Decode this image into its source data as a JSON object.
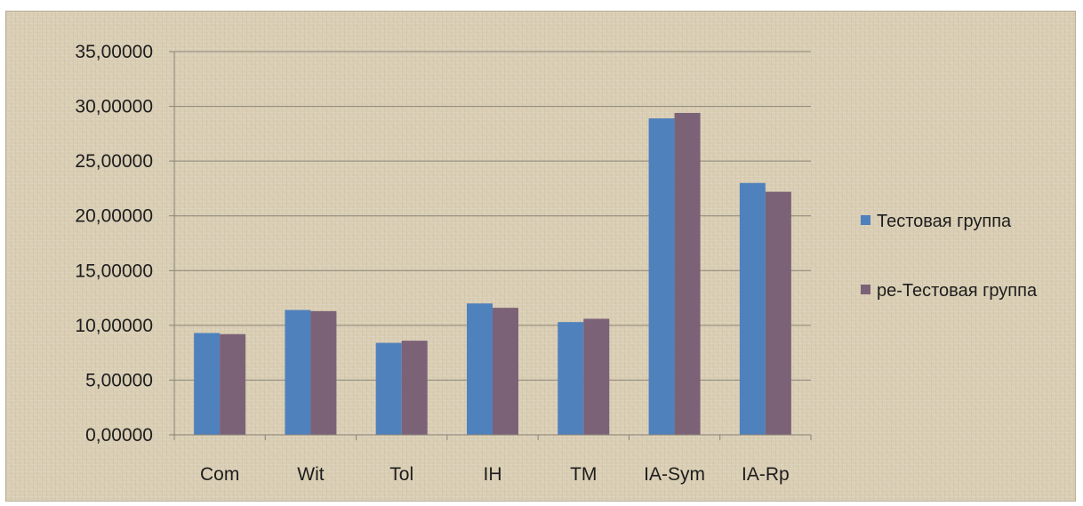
{
  "chart_data": {
    "type": "bar",
    "categories": [
      "Com",
      "Wit",
      "Tol",
      "IH",
      "TM",
      "IA-Sym",
      "IA-Rp"
    ],
    "series": [
      {
        "name": "Тестовая группа",
        "color": "#4f81bd",
        "values": [
          9.3,
          11.4,
          8.4,
          12.0,
          10.3,
          28.9,
          23.0
        ]
      },
      {
        "name": "ре-Тестовая группа",
        "color": "#7b6277",
        "values": [
          9.2,
          11.3,
          8.6,
          11.6,
          10.6,
          29.4,
          22.2
        ]
      }
    ],
    "y_ticks": [
      "0,00000",
      "5,00000",
      "10,00000",
      "15,00000",
      "20,00000",
      "25,00000",
      "30,00000",
      "35,00000"
    ],
    "ylim": [
      0,
      35
    ],
    "y_step": 5,
    "grid": true,
    "legend_position": "right",
    "title": "",
    "xlabel": "",
    "ylabel": ""
  }
}
